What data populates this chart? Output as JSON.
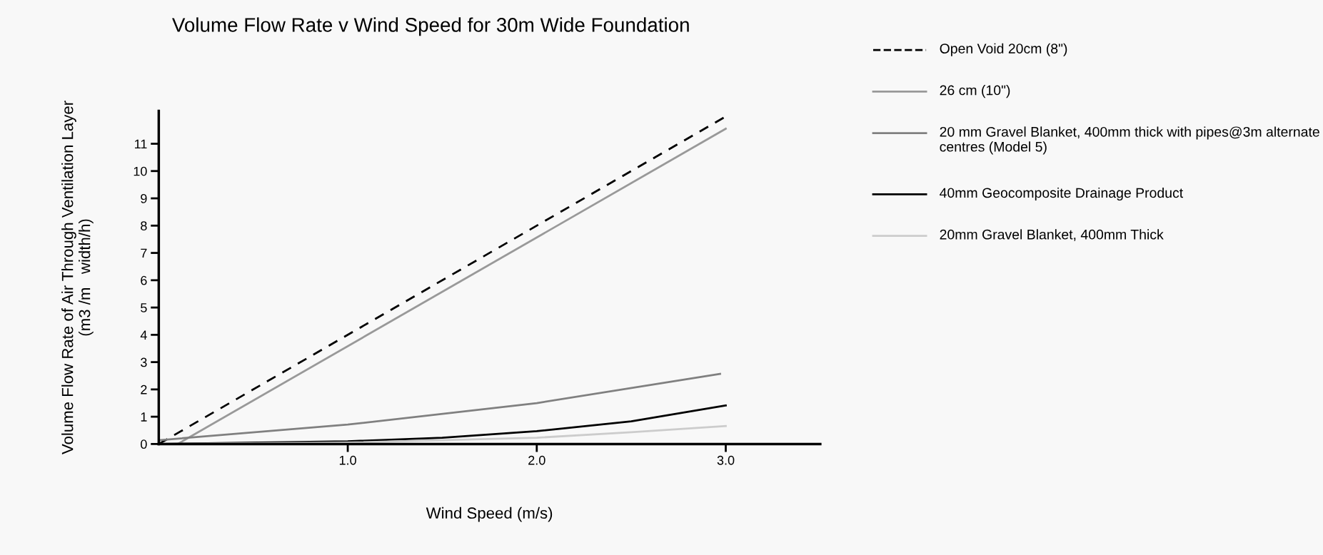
{
  "chart_data": {
    "type": "line",
    "title": "Volume Flow Rate v Wind Speed for 30m Wide Foundation",
    "xlabel": "Wind Speed (m/s)",
    "ylabel": "Volume Flow Rate of Air Through Ventilation Layer\n(m3 /m   width/h)",
    "xlim": [
      0,
      3.5
    ],
    "xticks": [
      {
        "value": 1,
        "label": "1.0"
      },
      {
        "value": 2,
        "label": "2.0"
      },
      {
        "value": 3,
        "label": "3.0"
      }
    ],
    "ylim": [
      0,
      12.2
    ],
    "yticks": [
      0,
      1,
      2,
      3,
      4,
      5,
      6,
      7,
      8,
      9,
      10,
      11
    ],
    "grid": false,
    "legend": "right",
    "marker": "none",
    "series": [
      {
        "name": "Open Void 20cm (8\")",
        "color": "#000000",
        "line_style": "dashed",
        "x": [
          0,
          3.0
        ],
        "values": [
          0,
          12.0
        ]
      },
      {
        "name": "26 cm (10\")",
        "color": "#999999",
        "line_style": "solid",
        "x": [
          0.1,
          3.0
        ],
        "values": [
          0,
          11.55
        ]
      },
      {
        "name": "20 mm Gravel Blanket, 400mm thick with pipes@3m alternate centres (Model 5)",
        "color": "#808080",
        "line_style": "solid",
        "x": [
          0,
          1.0,
          2.0,
          2.97
        ],
        "values": [
          0.14,
          0.71,
          1.5,
          2.57
        ]
      },
      {
        "name": "40mm Geocomposite Drainage Product",
        "color": "#000000",
        "line_style": "solid",
        "x": [
          0,
          1.0,
          1.5,
          2.0,
          2.5,
          3.0
        ],
        "values": [
          0,
          0.1,
          0.23,
          0.47,
          0.83,
          1.41
        ]
      },
      {
        "name": "20mm Gravel Blanket, 400mm Thick",
        "color": "#cccccc",
        "line_style": "solid",
        "x": [
          0,
          1.0,
          2.0,
          2.5,
          3.0
        ],
        "values": [
          0,
          0.05,
          0.23,
          0.43,
          0.66
        ]
      }
    ]
  }
}
